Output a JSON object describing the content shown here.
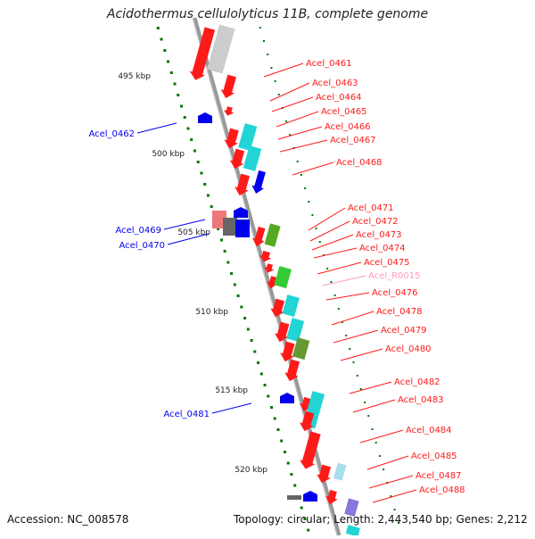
{
  "title": "Acidothermus cellulolyticus 11B, complete genome",
  "footer": {
    "accession": "Accession: NC_008578",
    "stats": "Topology: circular; Length: 2,443,540 bp; Genes: 2,212"
  },
  "colors": {
    "backbone": "#999999",
    "forward_gene": "#ff1a1a",
    "reverse_gene": "#0000ee",
    "rna_label": "#ff99bb",
    "ruler_dot": "#007700",
    "tick_label": "#222222"
  },
  "ruler": [
    {
      "label": "495 kbp"
    },
    {
      "label": "500 kbp"
    },
    {
      "label": "505 kbp"
    },
    {
      "label": "510 kbp"
    },
    {
      "label": "515 kbp"
    },
    {
      "label": "520 kbp"
    }
  ],
  "labels_right": [
    {
      "text": "Acel_0461",
      "kind": "gene"
    },
    {
      "text": "Acel_0463",
      "kind": "gene"
    },
    {
      "text": "Acel_0464",
      "kind": "gene"
    },
    {
      "text": "Acel_0465",
      "kind": "gene"
    },
    {
      "text": "Acel_0466",
      "kind": "gene"
    },
    {
      "text": "Acel_0467",
      "kind": "gene"
    },
    {
      "text": "Acel_0468",
      "kind": "gene"
    },
    {
      "text": "Acel_0471",
      "kind": "gene"
    },
    {
      "text": "Acel_0472",
      "kind": "gene"
    },
    {
      "text": "Acel_0473",
      "kind": "gene"
    },
    {
      "text": "Acel_0474",
      "kind": "gene"
    },
    {
      "text": "Acel_0475",
      "kind": "gene"
    },
    {
      "text": "Acel_R0015",
      "kind": "rna"
    },
    {
      "text": "Acel_0476",
      "kind": "gene"
    },
    {
      "text": "Acel_0478",
      "kind": "gene"
    },
    {
      "text": "Acel_0479",
      "kind": "gene"
    },
    {
      "text": "Acel_0480",
      "kind": "gene"
    },
    {
      "text": "Acel_0482",
      "kind": "gene"
    },
    {
      "text": "Acel_0483",
      "kind": "gene"
    },
    {
      "text": "Acel_0484",
      "kind": "gene"
    },
    {
      "text": "Acel_0485",
      "kind": "gene"
    },
    {
      "text": "Acel_0487",
      "kind": "gene"
    },
    {
      "text": "Acel_0488",
      "kind": "gene"
    }
  ],
  "labels_left": [
    {
      "text": "Acel_0462"
    },
    {
      "text": "Acel_0469"
    },
    {
      "text": "Acel_0470"
    },
    {
      "text": "Acel_0481"
    }
  ]
}
